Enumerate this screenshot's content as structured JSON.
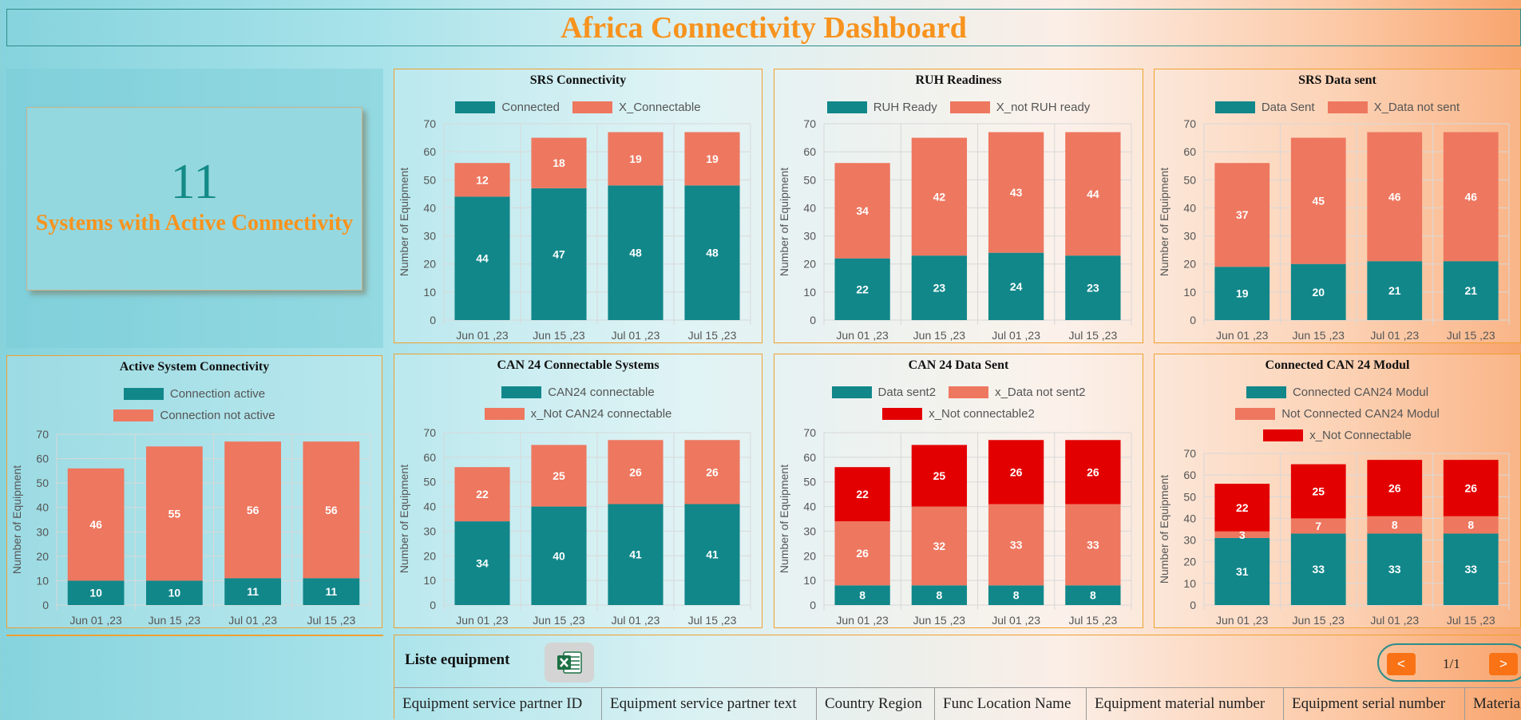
{
  "app_title": "Africa Connectivity Dashboard",
  "kpi": {
    "value": "11",
    "label": "Systems with Active Connectivity"
  },
  "colors": {
    "teal": "#11878a",
    "salmon": "#ee775f",
    "red": "#e30000",
    "orange": "#f7931e"
  },
  "charts": [
    {
      "id": "srs-connectivity",
      "chart_data": {
        "type": "bar",
        "stacked": true,
        "title": "SRS Connectivity",
        "categories": [
          "Jun 01 ,23",
          "Jun 15 ,23",
          "Jul 01 ,23",
          "Jul 15 ,23"
        ],
        "ylabel": "Number of Equipment",
        "ylim": [
          0,
          70
        ],
        "grid": true,
        "legend": "top",
        "series": [
          {
            "name": "Connected",
            "color": "#11878a",
            "values": [
              44,
              47,
              48,
              48
            ]
          },
          {
            "name": "X_Connectable",
            "color": "#ee775f",
            "values": [
              12,
              18,
              19,
              19
            ]
          }
        ]
      }
    },
    {
      "id": "ruh-readiness",
      "chart_data": {
        "type": "bar",
        "stacked": true,
        "title": "RUH Readiness",
        "categories": [
          "Jun 01 ,23",
          "Jun 15 ,23",
          "Jul 01 ,23",
          "Jul 15 ,23"
        ],
        "ylabel": "Number of Equipment",
        "ylim": [
          0,
          70
        ],
        "grid": true,
        "legend": "top",
        "series": [
          {
            "name": "RUH Ready",
            "color": "#11878a",
            "values": [
              22,
              23,
              24,
              23
            ]
          },
          {
            "name": "X_not RUH ready",
            "color": "#ee775f",
            "values": [
              34,
              42,
              43,
              44
            ]
          }
        ]
      }
    },
    {
      "id": "srs-data-sent",
      "chart_data": {
        "type": "bar",
        "stacked": true,
        "title": "SRS Data sent",
        "categories": [
          "Jun 01 ,23",
          "Jun 15 ,23",
          "Jul 01 ,23",
          "Jul 15 ,23"
        ],
        "ylabel": "Number of Equipment",
        "ylim": [
          0,
          70
        ],
        "grid": true,
        "legend": "top",
        "series": [
          {
            "name": "Data Sent",
            "color": "#11878a",
            "values": [
              19,
              20,
              21,
              21
            ]
          },
          {
            "name": "X_Data not sent",
            "color": "#ee775f",
            "values": [
              37,
              45,
              46,
              46
            ]
          }
        ]
      }
    },
    {
      "id": "active-system-connectivity",
      "chart_data": {
        "type": "bar",
        "stacked": true,
        "title": "Active System Connectivity",
        "categories": [
          "Jun 01 ,23",
          "Jun 15 ,23",
          "Jul 01 ,23",
          "Jul 15 ,23"
        ],
        "ylabel": "Number of Equipment",
        "ylim": [
          0,
          70
        ],
        "grid": true,
        "legend": "top",
        "series": [
          {
            "name": "Connection active",
            "color": "#11878a",
            "values": [
              10,
              10,
              11,
              11
            ]
          },
          {
            "name": "Connection not active",
            "color": "#ee775f",
            "values": [
              46,
              55,
              56,
              56
            ]
          }
        ]
      }
    },
    {
      "id": "can24-connectable-systems",
      "chart_data": {
        "type": "bar",
        "stacked": true,
        "title": "CAN 24 Connectable Systems",
        "categories": [
          "Jun 01 ,23",
          "Jun 15 ,23",
          "Jul 01 ,23",
          "Jul 15 ,23"
        ],
        "ylabel": "Number of Equipment",
        "ylim": [
          0,
          70
        ],
        "grid": true,
        "legend": "top",
        "series": [
          {
            "name": "CAN24 connectable",
            "color": "#11878a",
            "values": [
              34,
              40,
              41,
              41
            ]
          },
          {
            "name": "x_Not CAN24 connectable",
            "color": "#ee775f",
            "values": [
              22,
              25,
              26,
              26
            ]
          }
        ]
      }
    },
    {
      "id": "can24-data-sent",
      "chart_data": {
        "type": "bar",
        "stacked": true,
        "title": "CAN 24 Data Sent",
        "categories": [
          "Jun 01 ,23",
          "Jun 15 ,23",
          "Jul 01 ,23",
          "Jul 15 ,23"
        ],
        "ylabel": "Number of Equipment",
        "ylim": [
          0,
          70
        ],
        "grid": true,
        "legend": "top",
        "series": [
          {
            "name": "Data sent2",
            "color": "#11878a",
            "values": [
              8,
              8,
              8,
              8
            ]
          },
          {
            "name": "x_Data not sent2",
            "color": "#ee775f",
            "values": [
              26,
              32,
              33,
              33
            ]
          },
          {
            "name": "x_Not connectable2",
            "color": "#e30000",
            "values": [
              22,
              25,
              26,
              26
            ]
          }
        ]
      }
    },
    {
      "id": "connected-can24-modul",
      "chart_data": {
        "type": "bar",
        "stacked": true,
        "title": "Connected CAN 24 Modul",
        "categories": [
          "Jun 01 ,23",
          "Jun 15 ,23",
          "Jul 01 ,23",
          "Jul 15 ,23"
        ],
        "ylabel": "Number of Equipment",
        "ylim": [
          0,
          70
        ],
        "grid": true,
        "legend": "top",
        "series": [
          {
            "name": "Connected CAN24 Modul",
            "color": "#11878a",
            "values": [
              31,
              33,
              33,
              33
            ]
          },
          {
            "name": "Not Connected CAN24 Modul",
            "color": "#ee775f",
            "values": [
              3,
              7,
              8,
              8
            ]
          },
          {
            "name": "x_Not Connectable",
            "color": "#e30000",
            "values": [
              22,
              25,
              26,
              26
            ]
          }
        ]
      }
    }
  ],
  "equipment_list": {
    "title": "Liste equipment",
    "export_icon": "excel-icon",
    "pager": {
      "prev": "<",
      "next": ">",
      "page": "1/1"
    },
    "columns": [
      "Equipment service partner ID",
      "Equipment service partner text",
      "Country Region",
      "Func Location Name",
      "Equipment material number",
      "Equipment serial number",
      "Material"
    ]
  }
}
